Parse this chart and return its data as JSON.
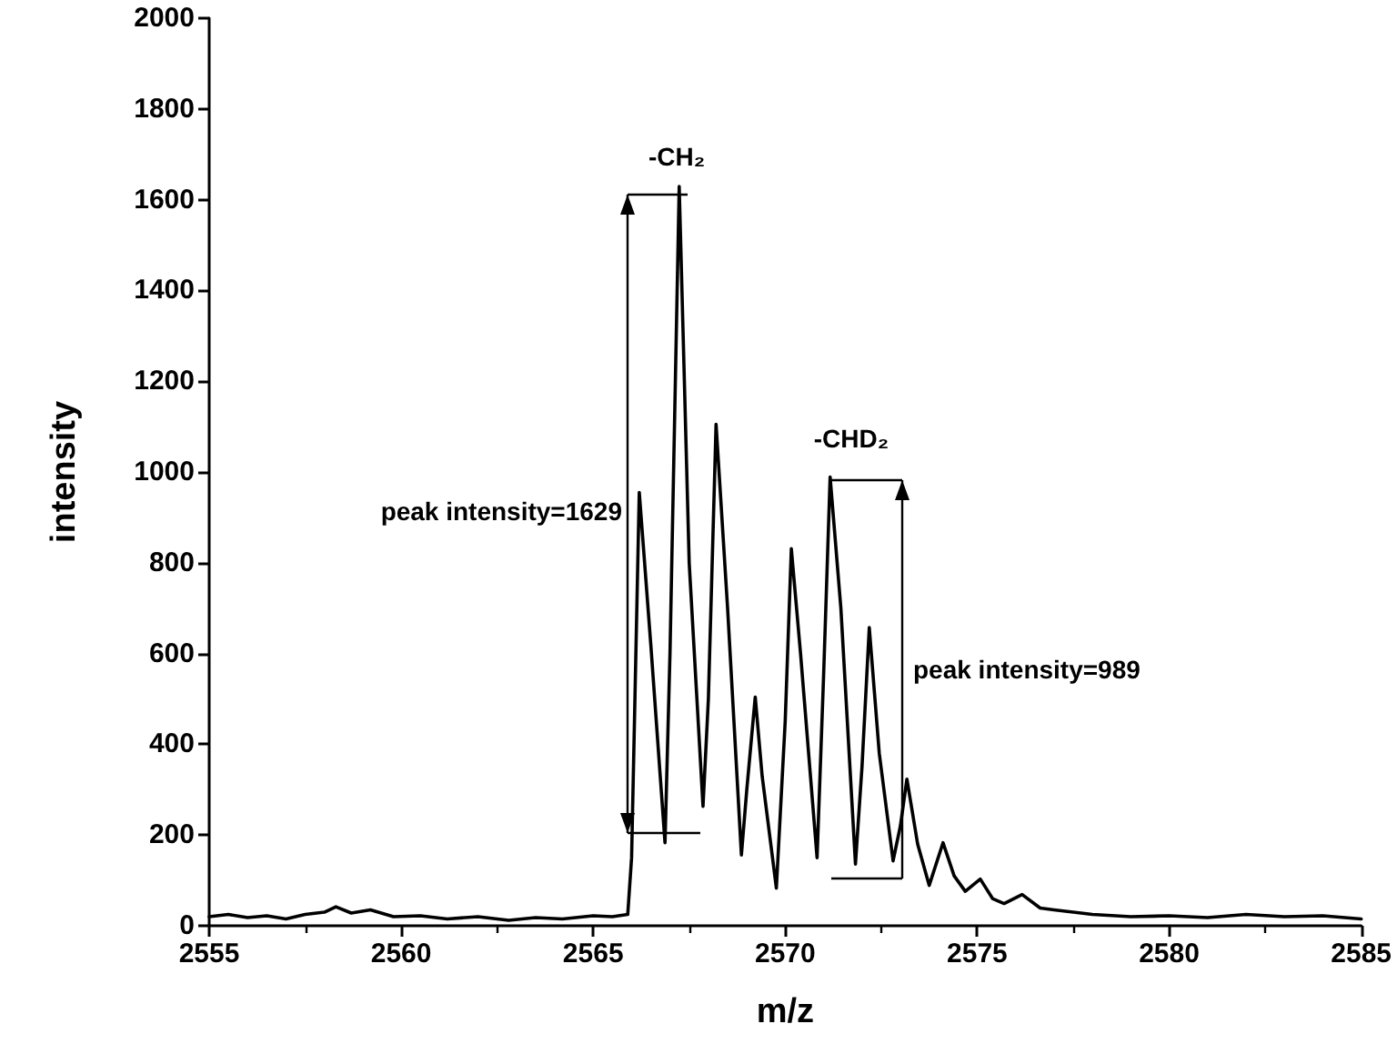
{
  "chart_data": {
    "type": "line",
    "xlabel": "m/z",
    "ylabel": "intensity",
    "xlim": [
      2555,
      2585
    ],
    "xticks": [
      2555,
      2560,
      2565,
      2570,
      2575,
      2580,
      2585
    ],
    "ylim": [
      0,
      2000
    ],
    "yticks": [
      0,
      200,
      400,
      600,
      800,
      1000,
      1200,
      1400,
      1600,
      1800,
      2000
    ],
    "grid": false,
    "marker": "none",
    "line_style": "solid",
    "series": [
      {
        "color": "#000000",
        "x": [
          2555.0,
          2555.5,
          2556.0,
          2556.5,
          2557.0,
          2557.5,
          2558.0,
          2558.3,
          2558.7,
          2559.2,
          2559.8,
          2560.5,
          2561.2,
          2562.0,
          2562.8,
          2563.5,
          2564.2,
          2565.0,
          2565.5,
          2565.9,
          2566.0,
          2566.2,
          2566.5,
          2566.87,
          2567.0,
          2567.24,
          2567.5,
          2567.86,
          2568.0,
          2568.2,
          2568.5,
          2568.86,
          2569.0,
          2569.22,
          2569.4,
          2569.77,
          2570.0,
          2570.16,
          2570.4,
          2570.83,
          2571.0,
          2571.17,
          2571.45,
          2571.83,
          2572.0,
          2572.19,
          2572.45,
          2572.81,
          2573.0,
          2573.17,
          2573.45,
          2573.75,
          2574.11,
          2574.4,
          2574.69,
          2575.08,
          2575.4,
          2575.7,
          2576.17,
          2576.64,
          2577.0,
          2578.0,
          2579.0,
          2580.0,
          2581.0,
          2582.0,
          2583.0,
          2584.0,
          2585.0
        ],
        "values": [
          20,
          25,
          18,
          22,
          15,
          25,
          30,
          42,
          28,
          35,
          20,
          22,
          15,
          20,
          12,
          18,
          15,
          22,
          20,
          25,
          150,
          955,
          620,
          183,
          600,
          1629,
          800,
          263,
          500,
          1105,
          700,
          156,
          300,
          504,
          330,
          83,
          450,
          831,
          600,
          150,
          550,
          989,
          700,
          136,
          350,
          657,
          380,
          143,
          220,
          323,
          180,
          89,
          183,
          110,
          76,
          103,
          60,
          49,
          69,
          39,
          35,
          25,
          20,
          22,
          18,
          25,
          20,
          22,
          15
        ]
      }
    ],
    "annotations": [
      "peak intensity=1629",
      "-CH₂",
      "-CHD₂",
      "peak intensity=989"
    ]
  }
}
